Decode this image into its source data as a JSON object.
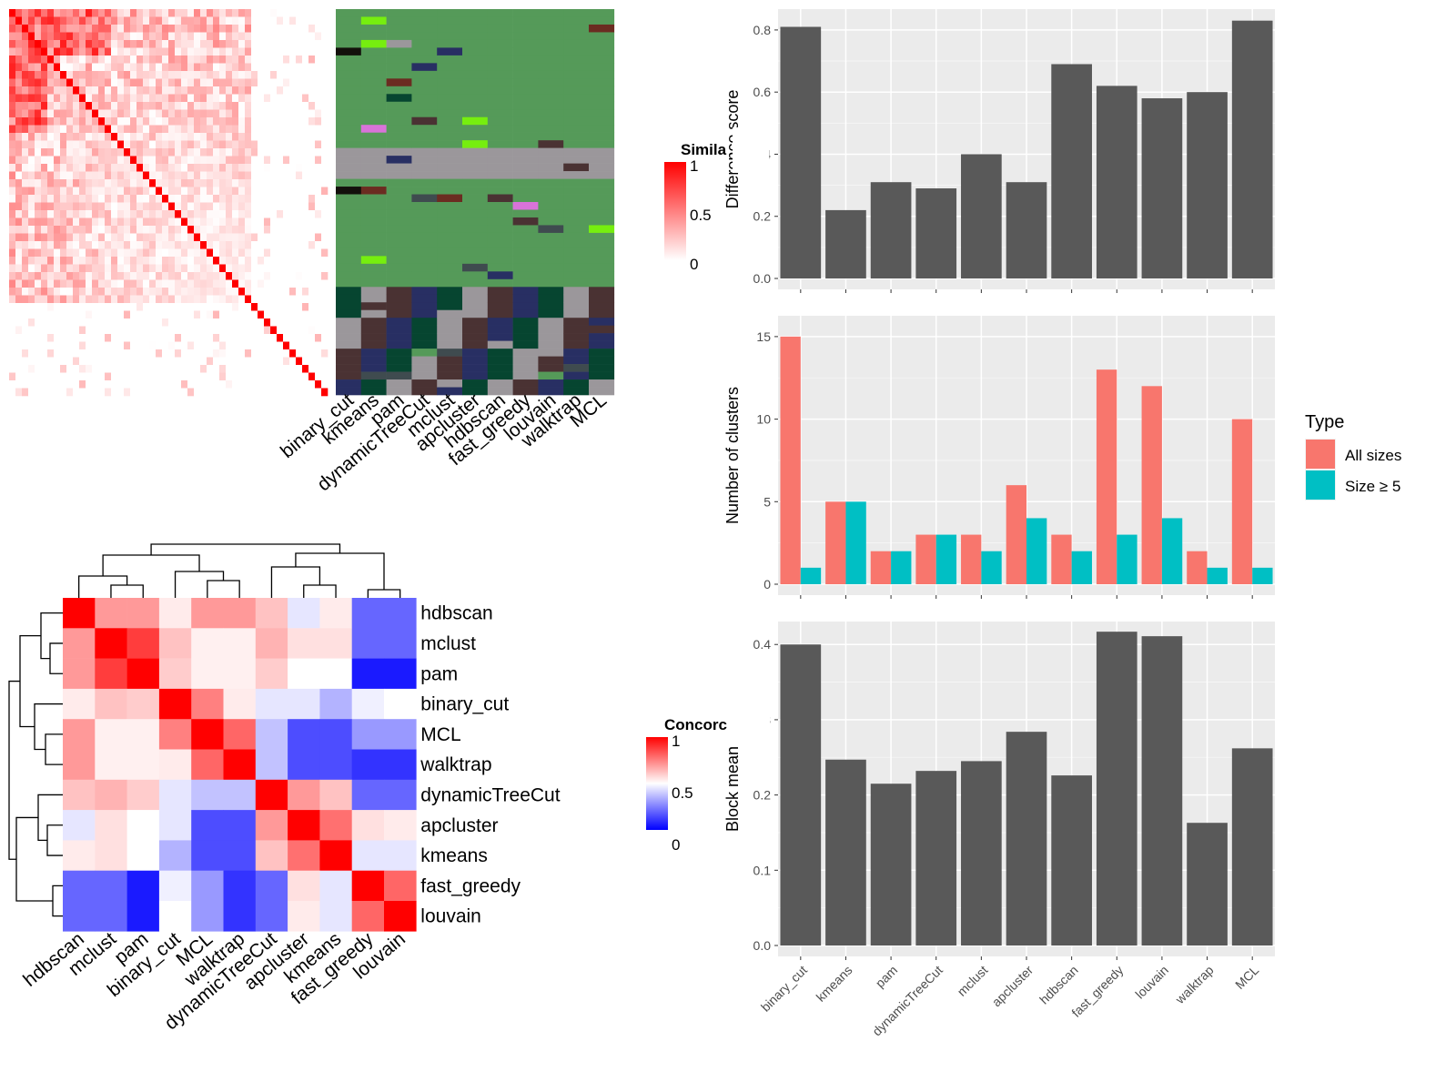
{
  "chart_data": [
    {
      "type": "heatmap",
      "name": "similarity-heatmap",
      "legend": {
        "title": "Simila",
        "ticks": [
          "1",
          "0.5",
          "0"
        ],
        "low_color": "#ffffff",
        "high_color": "#ff0000"
      }
    },
    {
      "type": "heatmap",
      "name": "cluster-assignments",
      "columns": [
        "binary_cut",
        "kmeans",
        "pam",
        "dynamicTreeCut",
        "mclust",
        "apcluster",
        "hdbscan",
        "fast_greedy",
        "louvain",
        "walktrap",
        "MCL"
      ]
    },
    {
      "type": "heatmap",
      "name": "concordance-heatmap",
      "rows": [
        "hdbscan",
        "mclust",
        "pam",
        "binary_cut",
        "MCL",
        "walktrap",
        "dynamicTreeCut",
        "apcluster",
        "kmeans",
        "fast_greedy",
        "louvain"
      ],
      "columns": [
        "hdbscan",
        "mclust",
        "pam",
        "binary_cut",
        "MCL",
        "walktrap",
        "dynamicTreeCut",
        "apcluster",
        "kmeans",
        "fast_greedy",
        "louvain"
      ],
      "values": [
        [
          1.0,
          0.7,
          0.7,
          0.54,
          0.7,
          0.7,
          0.62,
          0.45,
          0.54,
          0.2,
          0.2
        ],
        [
          0.7,
          1.0,
          0.88,
          0.62,
          0.53,
          0.53,
          0.65,
          0.56,
          0.56,
          0.2,
          0.2
        ],
        [
          0.7,
          0.88,
          1.0,
          0.6,
          0.53,
          0.53,
          0.6,
          0.5,
          0.5,
          0.05,
          0.05
        ],
        [
          0.54,
          0.62,
          0.6,
          1.0,
          0.75,
          0.54,
          0.45,
          0.45,
          0.35,
          0.47,
          0.5
        ],
        [
          0.7,
          0.53,
          0.53,
          0.75,
          1.0,
          0.8,
          0.38,
          0.15,
          0.15,
          0.3,
          0.3
        ],
        [
          0.7,
          0.53,
          0.53,
          0.54,
          0.8,
          1.0,
          0.38,
          0.15,
          0.15,
          0.1,
          0.1
        ],
        [
          0.62,
          0.65,
          0.6,
          0.45,
          0.38,
          0.38,
          1.0,
          0.7,
          0.62,
          0.2,
          0.2
        ],
        [
          0.45,
          0.56,
          0.5,
          0.45,
          0.15,
          0.15,
          0.7,
          1.0,
          0.78,
          0.56,
          0.54
        ],
        [
          0.54,
          0.56,
          0.5,
          0.35,
          0.15,
          0.15,
          0.62,
          0.78,
          1.0,
          0.45,
          0.45
        ],
        [
          0.2,
          0.2,
          0.05,
          0.47,
          0.3,
          0.1,
          0.2,
          0.56,
          0.45,
          1.0,
          0.8
        ],
        [
          0.2,
          0.2,
          0.05,
          0.5,
          0.3,
          0.1,
          0.2,
          0.54,
          0.45,
          0.8,
          1.0
        ]
      ],
      "legend": {
        "title": "Concorc",
        "ticks": [
          "1",
          "0.5",
          "0"
        ],
        "low_color": "#0000ff",
        "mid_color": "#ffffff",
        "high_color": "#ff0000"
      }
    },
    {
      "type": "bar",
      "name": "difference-score",
      "ylabel": "Difference score",
      "categories": [
        "binary_cut",
        "kmeans",
        "pam",
        "dynamicTreeCut",
        "mclust",
        "apcluster",
        "hdbscan",
        "fast_greedy",
        "louvain",
        "walktrap",
        "MCL"
      ],
      "values": [
        0.81,
        0.22,
        0.31,
        0.29,
        0.4,
        0.31,
        0.69,
        0.62,
        0.58,
        0.6,
        0.83
      ],
      "ylim": [
        0,
        0.8
      ],
      "yticks": [
        "0.0",
        "0.2",
        "0.4",
        "0.6",
        "0.8"
      ],
      "bar_color": "#595959"
    },
    {
      "type": "bar",
      "name": "number-of-clusters",
      "ylabel": "Number of clusters",
      "categories": [
        "binary_cut",
        "kmeans",
        "pam",
        "dynamicTreeCut",
        "mclust",
        "apcluster",
        "hdbscan",
        "fast_greedy",
        "louvain",
        "walktrap",
        "MCL"
      ],
      "series": [
        {
          "name": "All sizes",
          "values": [
            15,
            5,
            2,
            3,
            3,
            6,
            3,
            13,
            12,
            2,
            10
          ],
          "color": "#f8766d"
        },
        {
          "name": "Size ≥ 5",
          "values": [
            1,
            5,
            2,
            3,
            2,
            4,
            2,
            3,
            4,
            1,
            1
          ],
          "color": "#00bfc4"
        }
      ],
      "ylim": [
        0,
        15
      ],
      "yticks": [
        "0",
        "5",
        "10",
        "15"
      ],
      "legend": {
        "title": "Type",
        "position": "right"
      }
    },
    {
      "type": "bar",
      "name": "block-mean",
      "ylabel": "Block mean",
      "categories": [
        "binary_cut",
        "kmeans",
        "pam",
        "dynamicTreeCut",
        "mclust",
        "apcluster",
        "hdbscan",
        "fast_greedy",
        "louvain",
        "walktrap",
        "MCL"
      ],
      "values": [
        0.4,
        0.247,
        0.215,
        0.232,
        0.245,
        0.284,
        0.226,
        0.417,
        0.411,
        0.163,
        0.262
      ],
      "ylim": [
        0,
        0.4
      ],
      "yticks": [
        "0.0",
        "0.1",
        "0.2",
        "0.3",
        "0.4"
      ],
      "bar_color": "#595959"
    }
  ]
}
